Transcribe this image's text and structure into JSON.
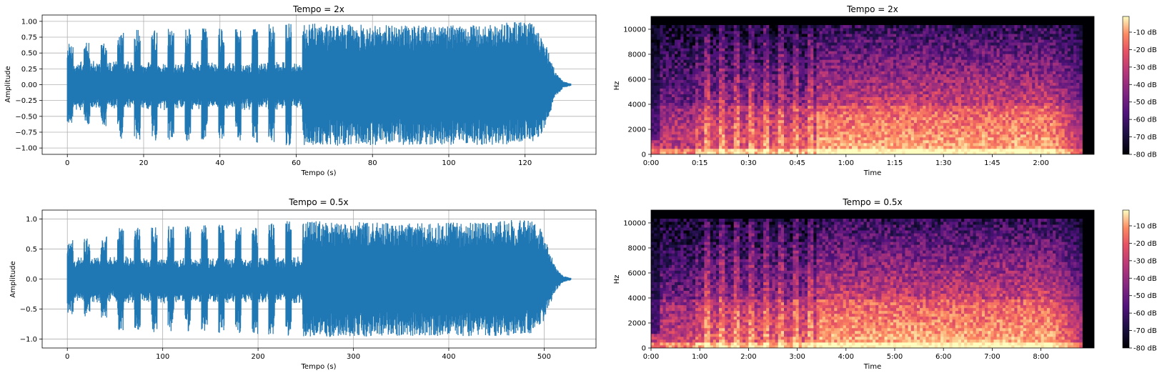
{
  "chart_data": [
    {
      "type": "line",
      "title": "Tempo = 2x",
      "xlabel": "Tempo (s)",
      "ylabel": "Amplitude",
      "xlim": [
        -6.6,
        138.6
      ],
      "ylim": [
        -1.1,
        1.1
      ],
      "xticks": [
        0,
        20,
        40,
        60,
        80,
        100,
        120
      ],
      "yticks": [
        1.0,
        0.75,
        0.5,
        0.25,
        0.0,
        -0.25,
        -0.5,
        -0.75,
        -1.0
      ],
      "ytick_labels": [
        "1.00",
        "0.75",
        "0.50",
        "0.25",
        "0.00",
        "−0.25",
        "−0.50",
        "−0.75",
        "−1.00"
      ],
      "grid": true,
      "color": "#1f77b4",
      "duration": 132,
      "envelope_x": [
        0,
        10,
        12,
        25,
        48,
        50,
        60,
        62,
        90,
        110,
        118,
        122,
        124,
        126,
        128,
        130,
        132
      ],
      "envelope_upper": [
        0.65,
        0.7,
        0.85,
        0.88,
        0.92,
        0.95,
        0.97,
        0.97,
        0.93,
        0.95,
        1.0,
        0.97,
        0.85,
        0.55,
        0.2,
        0.05,
        0.02
      ],
      "envelope_lower": [
        -0.6,
        -0.65,
        -0.85,
        -0.9,
        -0.9,
        -0.92,
        -0.97,
        -0.97,
        -0.95,
        -0.95,
        -0.95,
        -0.9,
        -0.85,
        -0.55,
        -0.2,
        -0.05,
        -0.02
      ]
    },
    {
      "type": "heatmap",
      "title": "Tempo = 2x",
      "xlabel": "Time",
      "ylabel": "Hz",
      "xticks": [
        "0:00",
        "0:15",
        "0:30",
        "0:45",
        "1:00",
        "1:15",
        "1:30",
        "1:45",
        "2:00"
      ],
      "yticks": [
        "0",
        "2000",
        "4000",
        "6000",
        "8000",
        "10000"
      ],
      "colorbar_ticks": [
        "-10 dB",
        "-20 dB",
        "-30 dB",
        "-40 dB",
        "-50 dB",
        "-60 dB",
        "-70 dB",
        "-80 dB"
      ],
      "colormap": "magma",
      "ylim": [
        0,
        11025
      ],
      "duration_s": 132,
      "freq_cutoff": 10300
    },
    {
      "type": "line",
      "title": "Tempo = 0.5x",
      "xlabel": "Tempo (s)",
      "ylabel": "Amplitude",
      "xlim": [
        -26.4,
        554.4
      ],
      "ylim": [
        -1.15,
        1.15
      ],
      "xticks": [
        0,
        100,
        200,
        300,
        400,
        500
      ],
      "yticks": [
        1.0,
        0.5,
        0.0,
        -0.5,
        -1.0
      ],
      "ytick_labels": [
        "1.0",
        "0.5",
        "0.0",
        "−0.5",
        "−1.0"
      ],
      "grid": true,
      "color": "#1f77b4",
      "duration": 528,
      "envelope_x": [
        0,
        40,
        48,
        100,
        192,
        200,
        240,
        248,
        360,
        440,
        472,
        488,
        496,
        504,
        512,
        520,
        528
      ],
      "envelope_upper": [
        0.65,
        0.7,
        0.85,
        0.88,
        0.92,
        0.95,
        0.97,
        0.97,
        0.93,
        0.95,
        1.0,
        0.97,
        0.85,
        0.55,
        0.2,
        0.05,
        0.02
      ],
      "envelope_lower": [
        -0.6,
        -0.65,
        -0.85,
        -0.9,
        -0.9,
        -0.92,
        -0.97,
        -0.97,
        -0.95,
        -0.95,
        -0.95,
        -0.9,
        -0.85,
        -0.55,
        -0.2,
        -0.05,
        -0.02
      ]
    },
    {
      "type": "heatmap",
      "title": "Tempo = 0.5x",
      "xlabel": "Time",
      "ylabel": "Hz",
      "xticks": [
        "0:00",
        "1:00",
        "2:00",
        "3:00",
        "4:00",
        "5:00",
        "6:00",
        "7:00",
        "8:00"
      ],
      "yticks": [
        "0",
        "2000",
        "4000",
        "6000",
        "8000",
        "10000"
      ],
      "colorbar_ticks": [
        "-10 dB",
        "-20 dB",
        "-30 dB",
        "-40 dB",
        "-50 dB",
        "-60 dB",
        "-70 dB",
        "-80 dB"
      ],
      "colormap": "magma",
      "ylim": [
        0,
        11025
      ],
      "duration_s": 528,
      "freq_cutoff": 10300
    }
  ]
}
